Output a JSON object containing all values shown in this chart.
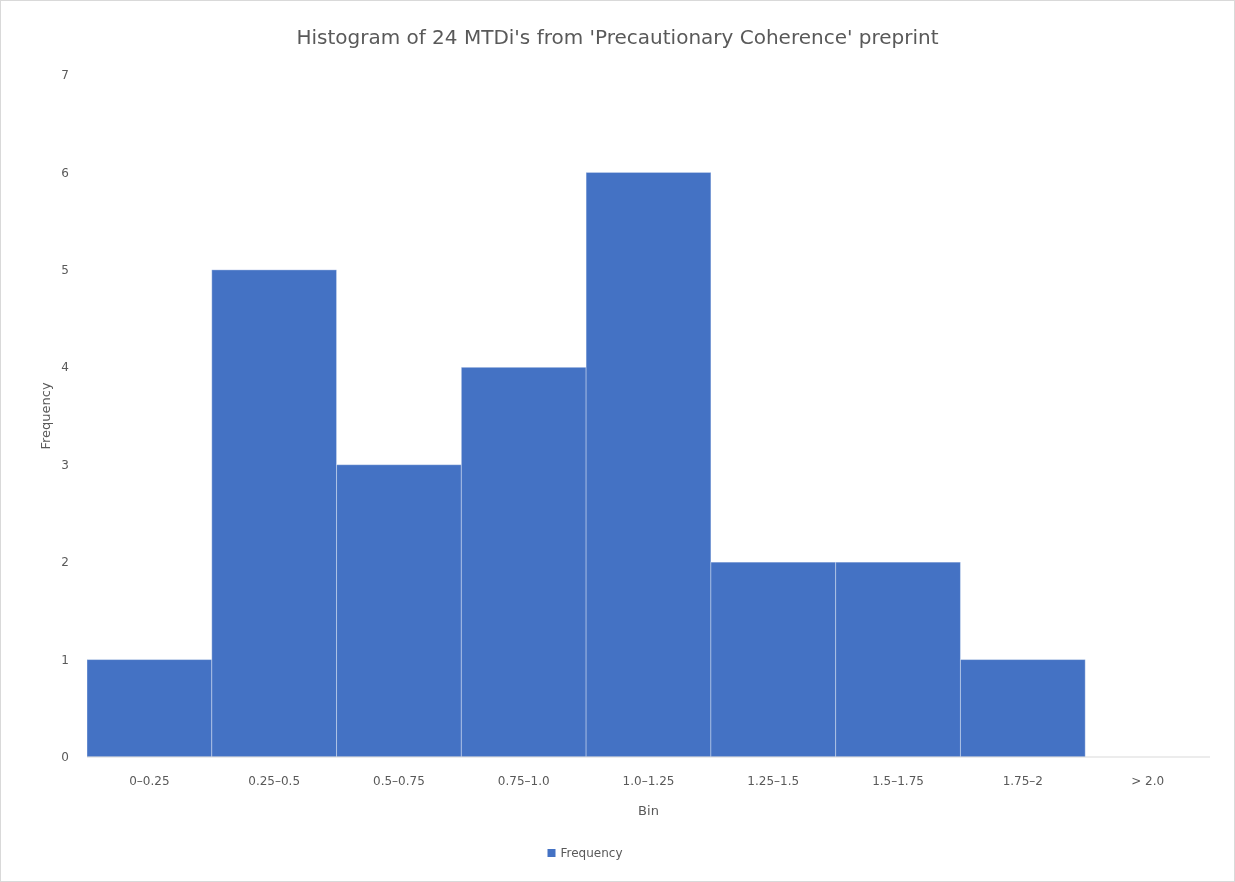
{
  "chart_data": {
    "type": "bar",
    "title": "Histogram of 24 MTDi's from 'Precautionary Coherence' preprint",
    "xlabel": "Bin",
    "ylabel": "Frequency",
    "categories": [
      "0–0.25",
      "0.25–0.5",
      "0.5–0.75",
      "0.75–1.0",
      "1.0–1.25",
      "1.25–1.5",
      "1.5–1.75",
      "1.75–2",
      "> 2.0"
    ],
    "series": [
      {
        "name": "Frequency",
        "color": "#4472c4",
        "values": [
          1,
          5,
          3,
          4,
          6,
          2,
          2,
          1,
          0
        ]
      }
    ],
    "ylim": [
      0,
      7
    ],
    "yticks": [
      0,
      1,
      2,
      3,
      4,
      5,
      6,
      7
    ],
    "grid": false,
    "legend": "bottom"
  }
}
